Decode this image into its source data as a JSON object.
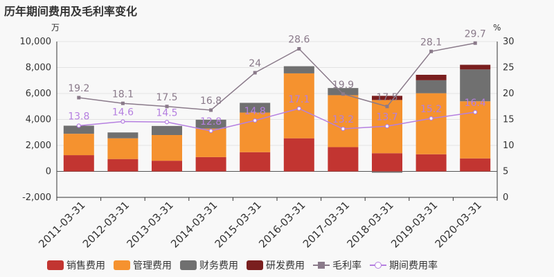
{
  "title": "历年期间费用及毛利率变化",
  "chart_data": {
    "type": "bar",
    "categories": [
      "2011-03-31",
      "2012-03-31",
      "2013-03-31",
      "2014-03-31",
      "2015-03-31",
      "2016-03-31",
      "2017-03-31",
      "2018-03-31",
      "2019-03-31",
      "2020-03-31"
    ],
    "left_unit": "万",
    "right_unit": "%",
    "ylim_left": [
      -2000,
      10000
    ],
    "yticks_left": [
      -2000,
      0,
      2000,
      4000,
      6000,
      8000,
      10000
    ],
    "ytick_labels_left": [
      "-2,000",
      "0",
      "2,000",
      "4,000",
      "6,000",
      "8,000",
      "10,000"
    ],
    "ylim_right": [
      0,
      30
    ],
    "yticks_right": [
      0,
      5,
      10,
      15,
      20,
      25,
      30
    ],
    "stacked": true,
    "series": [
      {
        "name": "销售费用",
        "type": "bar",
        "color": "#c23531",
        "values": [
          1250,
          950,
          820,
          1100,
          1480,
          2550,
          1870,
          1400,
          1320,
          1000
        ]
      },
      {
        "name": "管理费用",
        "type": "bar",
        "color": "#f5922f",
        "values": [
          1650,
          1600,
          1980,
          2200,
          3050,
          5000,
          4000,
          4100,
          4700,
          4400
        ]
      },
      {
        "name": "财务费用",
        "type": "bar",
        "color": "#707070",
        "values": [
          620,
          450,
          700,
          680,
          750,
          550,
          550,
          -100,
          1000,
          2450
        ]
      },
      {
        "name": "研发费用",
        "type": "bar",
        "color": "#7a1f1f",
        "values": [
          0,
          0,
          0,
          0,
          0,
          0,
          0,
          320,
          420,
          360
        ]
      },
      {
        "name": "毛利率",
        "type": "line",
        "axis": "right",
        "color": "#8a7a8a",
        "marker": "square",
        "values": [
          19.2,
          18.1,
          17.5,
          16.8,
          24,
          28.6,
          19.9,
          17.5,
          28.1,
          29.7
        ]
      },
      {
        "name": "期间费用率",
        "type": "line",
        "axis": "right",
        "color": "#b57fe0",
        "marker": "circle",
        "values": [
          13.8,
          14.6,
          14.5,
          12.8,
          14.8,
          17.1,
          13.2,
          13.7,
          15.2,
          16.4
        ]
      }
    ],
    "line_labels": {
      "毛利率": [
        "19.2",
        "18.1",
        "17.5",
        "16.8",
        "24",
        "28.6",
        "19.9",
        "17.5",
        "28.1",
        "29.7"
      ],
      "期间费用率": [
        "13.8",
        "14.6",
        "14.5",
        "12.8",
        "14.8",
        "17.1",
        "13.2",
        "13.7",
        "15.2",
        "16.4"
      ]
    },
    "legend_position": "bottom"
  }
}
